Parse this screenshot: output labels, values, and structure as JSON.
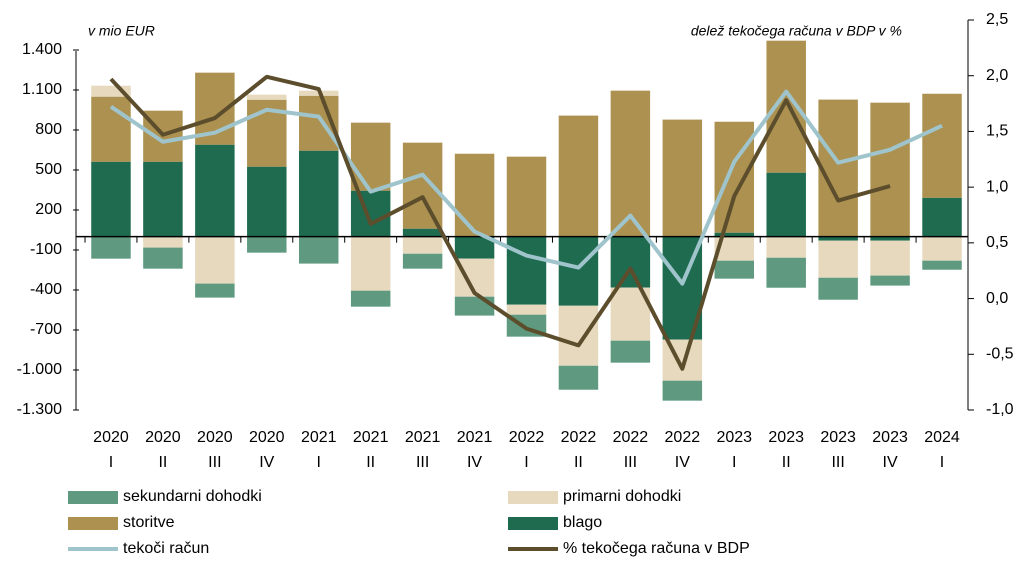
{
  "chart_data": {
    "type": "bar",
    "annotations": [
      "v mio EUR",
      "delež tekočega računa v BDP v %"
    ],
    "categories": [
      [
        "2020",
        "I"
      ],
      [
        "2020",
        "II"
      ],
      [
        "2020",
        "III"
      ],
      [
        "2020",
        "IV"
      ],
      [
        "2021",
        "I"
      ],
      [
        "2021",
        "II"
      ],
      [
        "2021",
        "III"
      ],
      [
        "2021",
        "IV"
      ],
      [
        "2022",
        "I"
      ],
      [
        "2022",
        "II"
      ],
      [
        "2022",
        "III"
      ],
      [
        "2022",
        "IV"
      ],
      [
        "2023",
        "I"
      ],
      [
        "2023",
        "II"
      ],
      [
        "2023",
        "III"
      ],
      [
        "2023",
        "IV"
      ],
      [
        "2024",
        "I"
      ]
    ],
    "series": [
      {
        "name": "sekundarni dohodki",
        "type": "bar",
        "color": "#5f9a80",
        "values": [
          -165,
          -158,
          -105,
          -120,
          -202,
          -120,
          -112,
          -142,
          -165,
          -180,
          -165,
          -150,
          -135,
          -225,
          -165,
          -75,
          -68
        ]
      },
      {
        "name": "primarni dohodki",
        "type": "bar",
        "color": "#e6d9bd",
        "values": [
          82,
          -82,
          -352,
          38,
          38,
          -405,
          -128,
          -285,
          -75,
          -450,
          -398,
          -308,
          -180,
          -158,
          -278,
          -262,
          -180
        ]
      },
      {
        "name": "storitve",
        "type": "bar",
        "color": "#ad9150",
        "values": [
          488,
          383,
          540,
          502,
          412,
          510,
          645,
          622,
          600,
          908,
          1095,
          878,
          832,
          990,
          1028,
          1005,
          780
        ]
      },
      {
        "name": "blago",
        "type": "bar",
        "color": "#1e6b50",
        "values": [
          562,
          562,
          690,
          525,
          645,
          345,
          60,
          -165,
          -510,
          -518,
          -382,
          -772,
          30,
          480,
          -30,
          -30,
          292
        ]
      },
      {
        "name": "tekoči račun",
        "type": "line",
        "color": "#9fc4cc",
        "values": [
          975,
          712,
          780,
          952,
          900,
          338,
          465,
          38,
          -142,
          -232,
          158,
          -352,
          562,
          1088,
          555,
          652,
          832
        ]
      },
      {
        "name": "% tekočega računa v BDP",
        "type": "line",
        "axis": "y2",
        "color": "#5c4d2c",
        "values": [
          1.97,
          1.47,
          1.62,
          1.99,
          1.88,
          0.67,
          0.91,
          0.05,
          -0.27,
          -0.42,
          0.27,
          -0.63,
          0.92,
          1.78,
          0.88,
          1.01,
          null
        ]
      }
    ],
    "ylim": [
      -1300,
      1625
    ],
    "yticks": [
      {
        "value": 1400,
        "label": "1.400"
      },
      {
        "value": 1100,
        "label": "1.100"
      },
      800,
      500,
      200,
      -100,
      -400,
      -700,
      {
        "value": -1000,
        "label": "-1.000"
      },
      {
        "value": -1300,
        "label": "-1.300"
      }
    ],
    "y2lim": [
      -1,
      2.5
    ],
    "y2ticks": [
      {
        "value": 2.5,
        "label": "2,5"
      },
      {
        "value": 2,
        "label": "2,0"
      },
      {
        "value": 1.5,
        "label": "1,5"
      },
      {
        "value": 1,
        "label": "1,0"
      },
      {
        "value": 0.5,
        "label": "0,5"
      },
      {
        "value": 0,
        "label": "0,0"
      },
      {
        "value": -0.5,
        "label": "-0,5"
      },
      {
        "value": -1,
        "label": "-1,0"
      }
    ],
    "grid": false,
    "legend": "bottom"
  }
}
